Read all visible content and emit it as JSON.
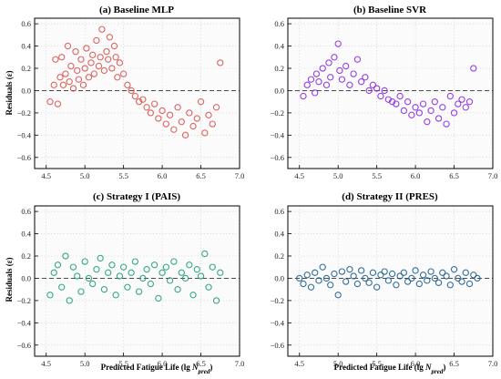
{
  "figure": {
    "panels": [
      {
        "title": "(a) Baseline MLP",
        "color": "#d9534f",
        "show_ylabel": true,
        "show_xlabel": false
      },
      {
        "title": "(b) Baseline SVR",
        "color": "#8a2be2",
        "show_ylabel": false,
        "show_xlabel": false
      },
      {
        "title": "(c) Strategy I (PAIS)",
        "color": "#1f9e78",
        "show_ylabel": true,
        "show_xlabel": true
      },
      {
        "title": "(d) Strategy II (PRES)",
        "color": "#1f5f8f",
        "show_ylabel": false,
        "show_xlabel": true
      }
    ],
    "ylabel": "Residuals (ε)",
    "xlabel_main": "Predicted Fatigue Life (lg ",
    "xlabel_var": "N",
    "xlabel_sub": "pred",
    "xlabel_close": ")",
    "xticks": [
      "4.5",
      "5.0",
      "5.5",
      "6.0",
      "6.5",
      "7.0"
    ],
    "yticks": [
      "0.6",
      "0.4",
      "0.2",
      "0.0",
      "−0.2",
      "−0.4",
      "−0.6"
    ]
  },
  "chart_data": [
    {
      "type": "scatter",
      "title": "(a) Baseline MLP",
      "xlabel": "",
      "ylabel": "Residuals (ε)",
      "xlim": [
        4.35,
        7.0
      ],
      "ylim": [
        -0.7,
        0.65
      ],
      "grid": true,
      "x": [
        4.55,
        4.6,
        4.62,
        4.65,
        4.68,
        4.7,
        4.72,
        4.75,
        4.78,
        4.8,
        4.82,
        4.85,
        4.88,
        4.9,
        4.92,
        4.95,
        4.98,
        5.0,
        5.02,
        5.05,
        5.08,
        5.1,
        5.12,
        5.15,
        5.18,
        5.2,
        5.22,
        5.25,
        5.28,
        5.3,
        5.32,
        5.35,
        5.38,
        5.4,
        5.42,
        5.45,
        5.5,
        5.55,
        5.6,
        5.65,
        5.7,
        5.75,
        5.8,
        5.85,
        5.9,
        5.95,
        6.0,
        6.05,
        6.1,
        6.15,
        6.2,
        6.25,
        6.3,
        6.35,
        6.4,
        6.45,
        6.5,
        6.55,
        6.6,
        6.65,
        6.7,
        6.75
      ],
      "y": [
        -0.1,
        0.05,
        0.28,
        -0.12,
        0.12,
        0.3,
        0.05,
        0.15,
        0.4,
        0.08,
        0.22,
        0.02,
        0.35,
        0.18,
        0.1,
        0.28,
        0.05,
        0.2,
        0.38,
        0.12,
        0.25,
        0.32,
        0.15,
        0.45,
        0.22,
        0.3,
        0.55,
        0.18,
        0.35,
        0.28,
        0.48,
        0.2,
        0.4,
        0.3,
        0.12,
        0.25,
        0.15,
        0.05,
        0.0,
        -0.05,
        -0.1,
        -0.08,
        -0.15,
        -0.2,
        -0.12,
        -0.25,
        -0.18,
        -0.3,
        -0.22,
        -0.35,
        -0.15,
        -0.28,
        -0.4,
        -0.2,
        -0.32,
        -0.25,
        -0.1,
        -0.38,
        -0.22,
        -0.3,
        -0.15,
        0.25
      ]
    },
    {
      "type": "scatter",
      "title": "(b) Baseline SVR",
      "xlabel": "",
      "ylabel": "",
      "xlim": [
        4.35,
        7.0
      ],
      "ylim": [
        -0.7,
        0.65
      ],
      "grid": true,
      "x": [
        4.55,
        4.6,
        4.65,
        4.7,
        4.72,
        4.75,
        4.8,
        4.85,
        4.88,
        4.9,
        4.95,
        5.0,
        5.02,
        5.05,
        5.1,
        5.15,
        5.2,
        5.25,
        5.3,
        5.35,
        5.4,
        5.45,
        5.5,
        5.55,
        5.6,
        5.65,
        5.7,
        5.75,
        5.8,
        5.85,
        5.9,
        5.95,
        6.0,
        6.05,
        6.1,
        6.15,
        6.2,
        6.25,
        6.3,
        6.35,
        6.4,
        6.45,
        6.5,
        6.55,
        6.6,
        6.65,
        6.7,
        6.75
      ],
      "y": [
        -0.05,
        0.05,
        0.1,
        -0.02,
        0.15,
        0.08,
        0.2,
        0.05,
        0.25,
        0.12,
        0.3,
        0.42,
        0.18,
        0.1,
        0.22,
        0.05,
        0.15,
        0.28,
        0.08,
        0.12,
        0.0,
        0.05,
        0.02,
        -0.05,
        0.0,
        -0.08,
        -0.1,
        -0.12,
        -0.05,
        -0.18,
        -0.1,
        -0.22,
        -0.15,
        -0.2,
        -0.12,
        -0.28,
        -0.18,
        -0.1,
        -0.25,
        -0.15,
        -0.3,
        -0.05,
        -0.2,
        -0.12,
        -0.08,
        -0.15,
        -0.1,
        0.2
      ]
    },
    {
      "type": "scatter",
      "title": "(c) Strategy I (PAIS)",
      "xlabel": "Predicted Fatigue Life (lg Npred)",
      "ylabel": "Residuals (ε)",
      "xlim": [
        4.35,
        7.0
      ],
      "ylim": [
        -0.7,
        0.65
      ],
      "grid": true,
      "x": [
        4.55,
        4.6,
        4.65,
        4.7,
        4.75,
        4.8,
        4.85,
        4.9,
        4.95,
        5.0,
        5.05,
        5.1,
        5.15,
        5.2,
        5.25,
        5.3,
        5.35,
        5.4,
        5.45,
        5.5,
        5.55,
        5.6,
        5.65,
        5.7,
        5.75,
        5.8,
        5.85,
        5.9,
        5.95,
        6.0,
        6.05,
        6.1,
        6.15,
        6.2,
        6.25,
        6.3,
        6.35,
        6.4,
        6.45,
        6.5,
        6.55,
        6.6,
        6.65,
        6.7,
        6.75
      ],
      "y": [
        -0.15,
        0.05,
        0.12,
        -0.08,
        0.2,
        -0.2,
        0.1,
        0.02,
        -0.12,
        0.15,
        0.0,
        -0.05,
        0.08,
        0.18,
        -0.1,
        0.05,
        0.12,
        -0.15,
        0.02,
        0.1,
        -0.08,
        0.05,
        0.15,
        -0.12,
        0.0,
        0.08,
        -0.05,
        0.12,
        -0.18,
        0.05,
        0.1,
        -0.02,
        0.15,
        -0.1,
        0.05,
        0.0,
        0.12,
        -0.15,
        0.08,
        0.02,
        0.22,
        -0.08,
        0.1,
        -0.2,
        0.05
      ]
    },
    {
      "type": "scatter",
      "title": "(d) Strategy II (PRES)",
      "xlabel": "Predicted Fatigue Life (lg Npred)",
      "ylabel": "",
      "xlim": [
        4.35,
        7.0
      ],
      "ylim": [
        -0.7,
        0.65
      ],
      "grid": true,
      "x": [
        4.5,
        4.55,
        4.6,
        4.65,
        4.7,
        4.75,
        4.8,
        4.85,
        4.9,
        4.95,
        5.0,
        5.05,
        5.1,
        5.15,
        5.2,
        5.25,
        5.3,
        5.35,
        5.4,
        5.45,
        5.5,
        5.55,
        5.6,
        5.65,
        5.7,
        5.75,
        5.8,
        5.85,
        5.9,
        5.95,
        6.0,
        6.05,
        6.1,
        6.15,
        6.2,
        6.25,
        6.3,
        6.35,
        6.4,
        6.45,
        6.5,
        6.55,
        6.6,
        6.65,
        6.7,
        6.75,
        6.8
      ],
      "y": [
        0.0,
        -0.05,
        0.03,
        -0.08,
        0.05,
        -0.02,
        0.1,
        0.0,
        -0.06,
        0.04,
        -0.15,
        0.06,
        -0.03,
        0.08,
        0.02,
        -0.05,
        0.07,
        0.0,
        -0.04,
        0.05,
        -0.08,
        0.03,
        0.06,
        -0.02,
        0.04,
        -0.06,
        0.02,
        0.05,
        -0.03,
        0.0,
        0.07,
        -0.05,
        0.03,
        -0.02,
        0.06,
        0.0,
        -0.04,
        0.05,
        0.02,
        -0.06,
        0.08,
        0.0,
        -0.03,
        0.05,
        -0.05,
        0.03,
        0.0
      ]
    }
  ]
}
